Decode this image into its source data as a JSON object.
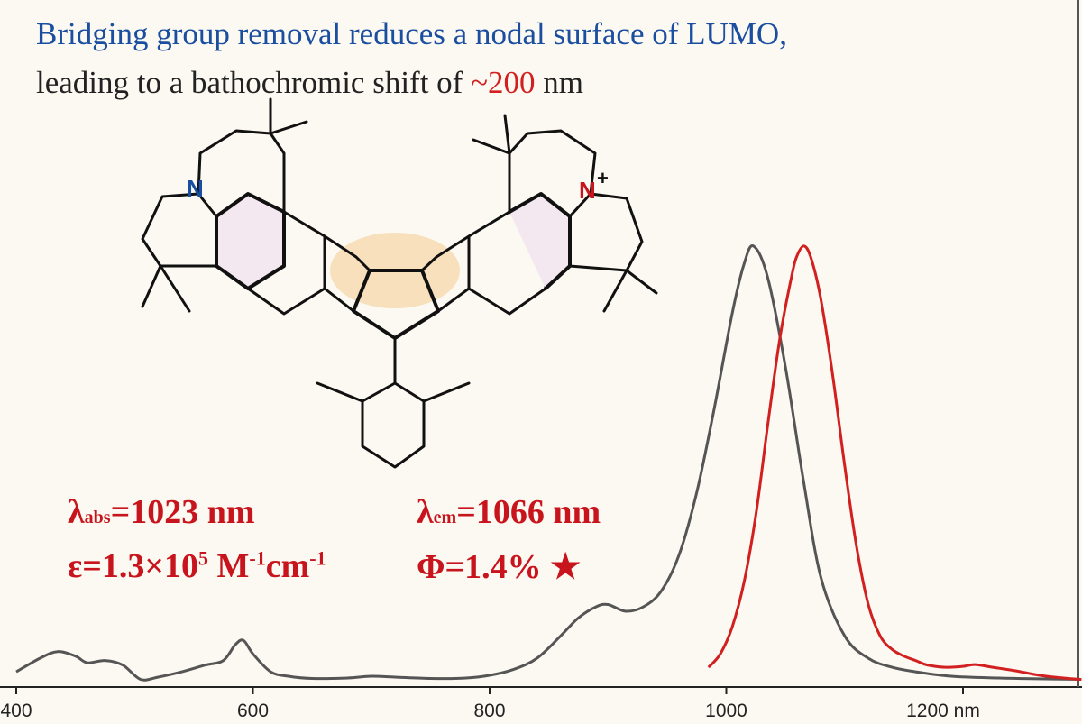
{
  "header": {
    "line1": "Bridging group removal reduces a nodal surface of LUMO,",
    "line2_prefix": "leading to a bathochromic shift of ",
    "line2_highlight": "~200",
    "line2_suffix": " nm"
  },
  "molecule": {
    "atom_n_left": "N",
    "atom_n_right": "N",
    "charge": "+"
  },
  "annotations": {
    "abs_symbol": "λ",
    "abs_sub": "abs",
    "abs_value": "=1023 nm",
    "eps_prefix": "ε=1.3×10",
    "eps_exp": "5",
    "eps_unit_m": " M",
    "eps_exp1": "-1",
    "eps_unit_cm": "cm",
    "eps_exp2": "-1",
    "em_symbol": "λ",
    "em_sub": "em",
    "em_value": "=1066 nm",
    "phi": "Φ=1.4%",
    "star": "★"
  },
  "colors": {
    "absorption": "#555555",
    "emission": "#d21f1f",
    "title_blue": "#1a4ea0",
    "annotation_red": "#c8141c",
    "background": "#fbf9f1"
  },
  "chart_data": {
    "type": "line",
    "xlabel": "",
    "ylabel": "",
    "xlim": [
      400,
      1300
    ],
    "ylim": [
      0,
      1
    ],
    "x_ticks": [
      {
        "value": 400,
        "label": "400"
      },
      {
        "value": 600,
        "label": "600"
      },
      {
        "value": 800,
        "label": "800"
      },
      {
        "value": 1000,
        "label": "1000"
      },
      {
        "value": 1200,
        "label": "1200 nm"
      }
    ],
    "series": [
      {
        "key": "absorption",
        "x": [
          400,
          420,
          435,
          450,
          460,
          475,
          490,
          505,
          520,
          540,
          560,
          575,
          585,
          592,
          600,
          615,
          630,
          650,
          680,
          700,
          720,
          750,
          780,
          800,
          820,
          840,
          860,
          875,
          890,
          900,
          915,
          930,
          945,
          960,
          975,
          990,
          1005,
          1015,
          1023,
          1035,
          1050,
          1065,
          1080,
          1100,
          1120,
          1140,
          1160,
          1190,
          1230,
          1270,
          1300
        ],
        "y": [
          0.02,
          0.05,
          0.065,
          0.055,
          0.04,
          0.045,
          0.035,
          0.003,
          0.008,
          0.02,
          0.035,
          0.045,
          0.08,
          0.09,
          0.06,
          0.02,
          0.01,
          0.005,
          0.006,
          0.01,
          0.008,
          0.005,
          0.006,
          0.012,
          0.025,
          0.05,
          0.1,
          0.14,
          0.165,
          0.17,
          0.155,
          0.165,
          0.2,
          0.28,
          0.42,
          0.61,
          0.82,
          0.93,
          0.97,
          0.9,
          0.7,
          0.45,
          0.23,
          0.1,
          0.05,
          0.03,
          0.02,
          0.01,
          0.006,
          0.004,
          0.003
        ]
      },
      {
        "key": "emission",
        "x": [
          985,
          995,
          1005,
          1015,
          1025,
          1035,
          1045,
          1055,
          1060,
          1066,
          1072,
          1080,
          1090,
          1100,
          1110,
          1120,
          1130,
          1140,
          1150,
          1160,
          1170,
          1185,
          1200,
          1210,
          1225,
          1245,
          1265,
          1285,
          1300
        ],
        "y": [
          0.03,
          0.06,
          0.12,
          0.22,
          0.37,
          0.57,
          0.76,
          0.9,
          0.95,
          0.97,
          0.94,
          0.85,
          0.68,
          0.48,
          0.3,
          0.17,
          0.1,
          0.07,
          0.055,
          0.045,
          0.035,
          0.03,
          0.032,
          0.036,
          0.03,
          0.022,
          0.012,
          0.006,
          0.003
        ]
      }
    ]
  }
}
